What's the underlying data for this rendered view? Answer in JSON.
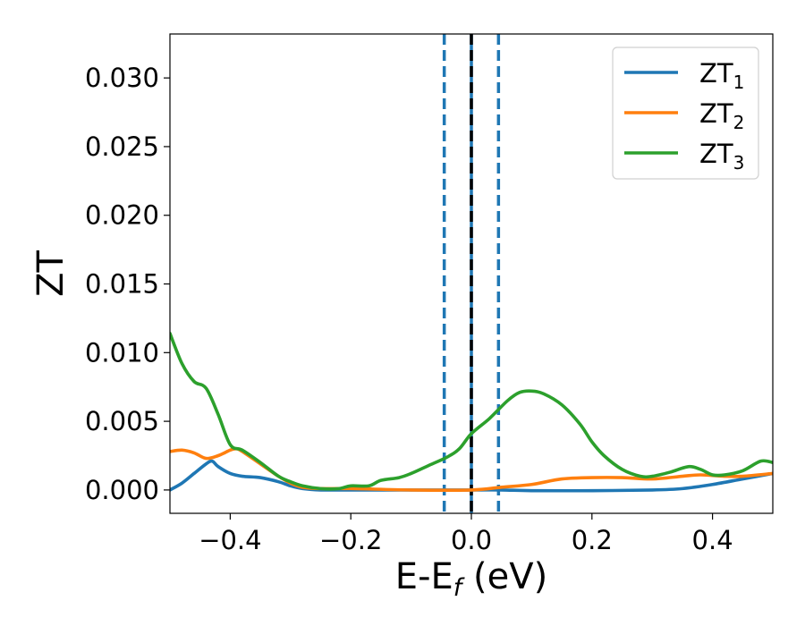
{
  "chart_data": {
    "type": "line",
    "title": "",
    "xlabel": "E-E",
    "xlabel_sub": "f",
    "xlabel_unit": " (eV)",
    "ylabel": "ZT",
    "xlim": [
      -0.5,
      0.5
    ],
    "ylim": [
      -0.0017,
      0.0332
    ],
    "xticks": [
      -0.4,
      -0.2,
      0.0,
      0.2,
      0.4
    ],
    "xtick_labels": [
      "−0.4",
      "−0.2",
      "0.0",
      "0.2",
      "0.4"
    ],
    "yticks": [
      0.0,
      0.005,
      0.01,
      0.015,
      0.02,
      0.025,
      0.03
    ],
    "ytick_labels": [
      "0.000",
      "0.005",
      "0.010",
      "0.015",
      "0.020",
      "0.025",
      "0.030"
    ],
    "grid": false,
    "legend_position": "top-right",
    "vlines": [
      {
        "x": -0.045,
        "color": "#1f77b4",
        "style": "dashed"
      },
      {
        "x": 0.0,
        "color": "#1f77b4",
        "style": "solid"
      },
      {
        "x": 0.0,
        "color": "#000000",
        "style": "dashed"
      },
      {
        "x": 0.045,
        "color": "#1f77b4",
        "style": "dashed"
      }
    ],
    "series": [
      {
        "name": "ZT",
        "name_sub": "1",
        "color": "#1f77b4",
        "x": [
          -0.5,
          -0.48,
          -0.46,
          -0.44,
          -0.43,
          -0.42,
          -0.4,
          -0.38,
          -0.35,
          -0.32,
          -0.3,
          -0.28,
          -0.25,
          -0.2,
          -0.1,
          0.0,
          0.05,
          0.1,
          0.2,
          0.3,
          0.35,
          0.4,
          0.45,
          0.5
        ],
        "y": [
          0.0,
          0.0005,
          0.0012,
          0.0019,
          0.0021,
          0.0017,
          0.0012,
          0.001,
          0.0009,
          0.0006,
          0.0003,
          0.0001,
          0.0,
          0.0,
          0.0,
          0.0,
          0.0,
          -5e-05,
          -5e-05,
          0.0,
          0.0001,
          0.0004,
          0.0008,
          0.0012
        ]
      },
      {
        "name": "ZT",
        "name_sub": "2",
        "color": "#ff7f0e",
        "x": [
          -0.5,
          -0.48,
          -0.46,
          -0.44,
          -0.42,
          -0.4,
          -0.39,
          -0.38,
          -0.35,
          -0.32,
          -0.3,
          -0.28,
          -0.25,
          -0.2,
          -0.1,
          0.0,
          0.05,
          0.1,
          0.15,
          0.2,
          0.25,
          0.3,
          0.35,
          0.38,
          0.42,
          0.45,
          0.5
        ],
        "y": [
          0.0028,
          0.0029,
          0.0027,
          0.0023,
          0.0025,
          0.0029,
          0.003,
          0.0028,
          0.0019,
          0.001,
          0.0005,
          0.0002,
          0.0001,
          0.0001,
          0.0,
          0.0,
          0.0002,
          0.0004,
          0.0008,
          0.0009,
          0.0009,
          0.0008,
          0.001,
          0.0011,
          0.001,
          0.001,
          0.0012
        ]
      },
      {
        "name": "ZT",
        "name_sub": "3",
        "color": "#2ca02c",
        "x": [
          -0.5,
          -0.48,
          -0.46,
          -0.44,
          -0.42,
          -0.4,
          -0.38,
          -0.35,
          -0.32,
          -0.3,
          -0.28,
          -0.25,
          -0.22,
          -0.2,
          -0.17,
          -0.15,
          -0.12,
          -0.1,
          -0.07,
          -0.04,
          -0.02,
          0.0,
          0.03,
          0.06,
          0.08,
          0.1,
          0.12,
          0.15,
          0.18,
          0.2,
          0.22,
          0.25,
          0.28,
          0.3,
          0.33,
          0.36,
          0.38,
          0.4,
          0.42,
          0.45,
          0.48,
          0.5
        ],
        "y": [
          0.0114,
          0.0092,
          0.0079,
          0.0074,
          0.0055,
          0.0033,
          0.0029,
          0.002,
          0.001,
          0.0006,
          0.0003,
          0.0001,
          0.0001,
          0.0003,
          0.0003,
          0.0007,
          0.0009,
          0.0012,
          0.0018,
          0.0024,
          0.003,
          0.0041,
          0.0052,
          0.0065,
          0.0071,
          0.0072,
          0.007,
          0.0062,
          0.0048,
          0.0035,
          0.0025,
          0.0015,
          0.001,
          0.001,
          0.0013,
          0.0017,
          0.0015,
          0.0011,
          0.0011,
          0.0014,
          0.0021,
          0.002
        ]
      }
    ]
  }
}
